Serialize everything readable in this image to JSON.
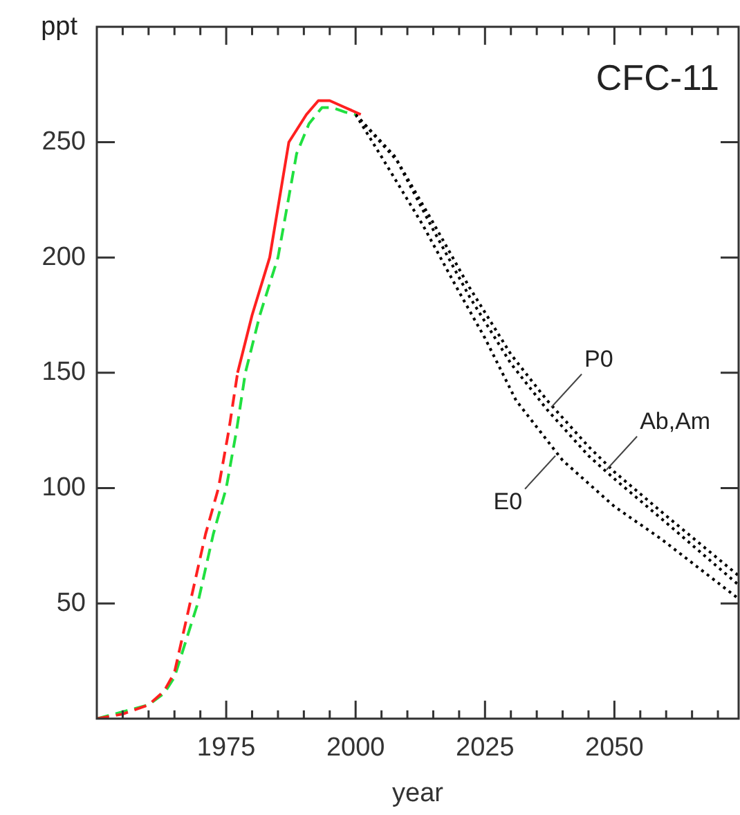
{
  "chart_data": {
    "type": "line",
    "title": "CFC-11",
    "xlabel": "year",
    "ylabel": "ppt",
    "xlim": [
      1950,
      2074
    ],
    "ylim": [
      0,
      300
    ],
    "xticks": [
      {
        "value": 1955,
        "label": null
      },
      {
        "value": 1960,
        "label": null
      },
      {
        "value": 1965,
        "label": null
      },
      {
        "value": 1970,
        "label": null
      },
      1975,
      {
        "value": 1980,
        "label": null
      },
      {
        "value": 1985,
        "label": null
      },
      {
        "value": 1990,
        "label": null
      },
      {
        "value": 1995,
        "label": null
      },
      2000,
      {
        "value": 2005,
        "label": null
      },
      {
        "value": 2010,
        "label": null
      },
      {
        "value": 2015,
        "label": null
      },
      {
        "value": 2020,
        "label": null
      },
      2025,
      {
        "value": 2030,
        "label": null
      },
      {
        "value": 2035,
        "label": null
      },
      {
        "value": 2040,
        "label": null
      },
      {
        "value": 2045,
        "label": null
      },
      2050,
      {
        "value": 2055,
        "label": null
      },
      {
        "value": 2060,
        "label": null
      },
      {
        "value": 2065,
        "label": null
      },
      {
        "value": 2070,
        "label": null
      }
    ],
    "yticks": [
      50,
      100,
      150,
      200,
      250
    ],
    "grid": false,
    "legend": false,
    "marker": "none",
    "series": [
      {
        "color": "#ff2020",
        "line_style": "dashed",
        "x": [
          1950,
          1955,
          1960,
          1963,
          1965,
          1968,
          1971,
          1973.5,
          1975.5,
          1977.2
        ],
        "values": [
          0,
          2,
          6,
          12,
          20,
          50,
          80,
          100,
          125,
          150
        ]
      },
      {
        "color": "#ff2020",
        "line_style": "solid",
        "x": [
          1977.2,
          1980,
          1983.4,
          1987.1,
          1990.5,
          1992.8,
          1995,
          1998,
          2001
        ],
        "values": [
          150,
          175,
          200,
          250,
          262,
          268,
          268,
          265,
          262
        ]
      },
      {
        "color": "#20e040",
        "line_style": "dashed",
        "x": [
          1950,
          1955,
          1960,
          1963,
          1965,
          1969.5,
          1972.5,
          1975,
          1977,
          1978.7,
          1981.5,
          1985,
          1988.6,
          1991,
          1993.5,
          1995.5,
          1998,
          2000
        ],
        "values": [
          0,
          null,
          6,
          11,
          18,
          50,
          80,
          100,
          125,
          150,
          175,
          200,
          245,
          258,
          265,
          265,
          263,
          262
        ]
      },
      {
        "color": "#000000",
        "line_style": "dotted",
        "x": [
          2000,
          2007.5,
          2015,
          2022,
          2030,
          2037,
          2045,
          2050,
          2060,
          2074
        ],
        "values": [
          262,
          244,
          215,
          187,
          158,
          138,
          118,
          107,
          88,
          62
        ]
      },
      {
        "color": "#000000",
        "line_style": "dotted",
        "x": [
          2000,
          2008,
          2015,
          2022,
          2030,
          2037,
          2045,
          2050,
          2060,
          2074
        ],
        "values": [
          262,
          242,
          212,
          183,
          154,
          134,
          114,
          104,
          85,
          58
        ]
      },
      {
        "color": "#000000",
        "line_style": "dotted",
        "x": [
          2000,
          2006,
          2013,
          2020,
          2025,
          2031,
          2040,
          2050,
          2059,
          2074
        ],
        "values": [
          262,
          240,
          214,
          185,
          165,
          138,
          112,
          92,
          78,
          52
        ]
      }
    ],
    "annotations": [
      {
        "text": "P0",
        "x": 2037.8,
        "y": 135
      },
      {
        "text": "Ab,Am",
        "x": 2048.5,
        "y": 108
      },
      {
        "text": "E0",
        "x": 2038.6,
        "y": 114
      }
    ]
  }
}
